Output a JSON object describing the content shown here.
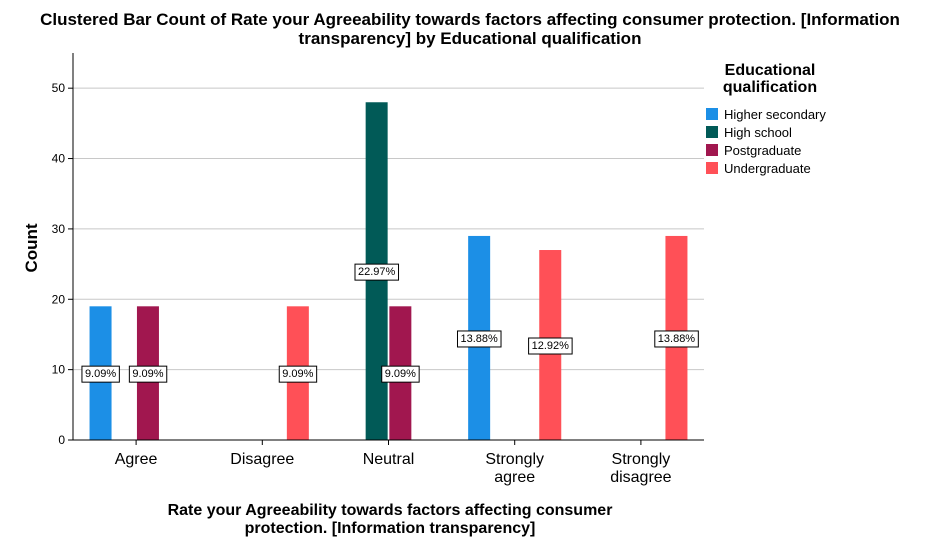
{
  "chart_data": {
    "type": "bar",
    "title_lines": [
      "Clustered Bar Count of Rate your Agreeability towards factors affecting consumer protection. [Information",
      "transparency] by Educational qualification"
    ],
    "xlabel_lines": [
      "Rate your Agreeability towards factors affecting consumer",
      "protection. [Information transparency]"
    ],
    "ylabel": "Count",
    "ylim": [
      0,
      55
    ],
    "yticks": [
      0,
      10,
      20,
      30,
      40,
      50
    ],
    "grid": true,
    "legend_title_lines": [
      "Educational",
      "qualification"
    ],
    "legend_position": "right",
    "categories": [
      {
        "lines": [
          "Agree"
        ]
      },
      {
        "lines": [
          "Disagree"
        ]
      },
      {
        "lines": [
          "Neutral"
        ]
      },
      {
        "lines": [
          "Strongly",
          "agree"
        ]
      },
      {
        "lines": [
          "Strongly",
          "disagree"
        ]
      }
    ],
    "series": [
      {
        "name": "Higher secondary",
        "color": "#1c8fe6",
        "values": [
          19,
          null,
          null,
          29,
          null
        ],
        "labels": [
          "9.09%",
          null,
          null,
          "13.88%",
          null
        ]
      },
      {
        "name": "High school",
        "color": "#015a57",
        "values": [
          null,
          null,
          48,
          null,
          null
        ],
        "labels": [
          null,
          null,
          "22.97%",
          null,
          null
        ]
      },
      {
        "name": "Postgraduate",
        "color": "#a1174f",
        "values": [
          19,
          null,
          19,
          null,
          null
        ],
        "labels": [
          "9.09%",
          null,
          "9.09%",
          null,
          null
        ]
      },
      {
        "name": "Undergraduate",
        "color": "#ff5057",
        "values": [
          null,
          19,
          null,
          27,
          29
        ],
        "labels": [
          null,
          "9.09%",
          null,
          "12.92%",
          "13.88%"
        ]
      }
    ]
  }
}
